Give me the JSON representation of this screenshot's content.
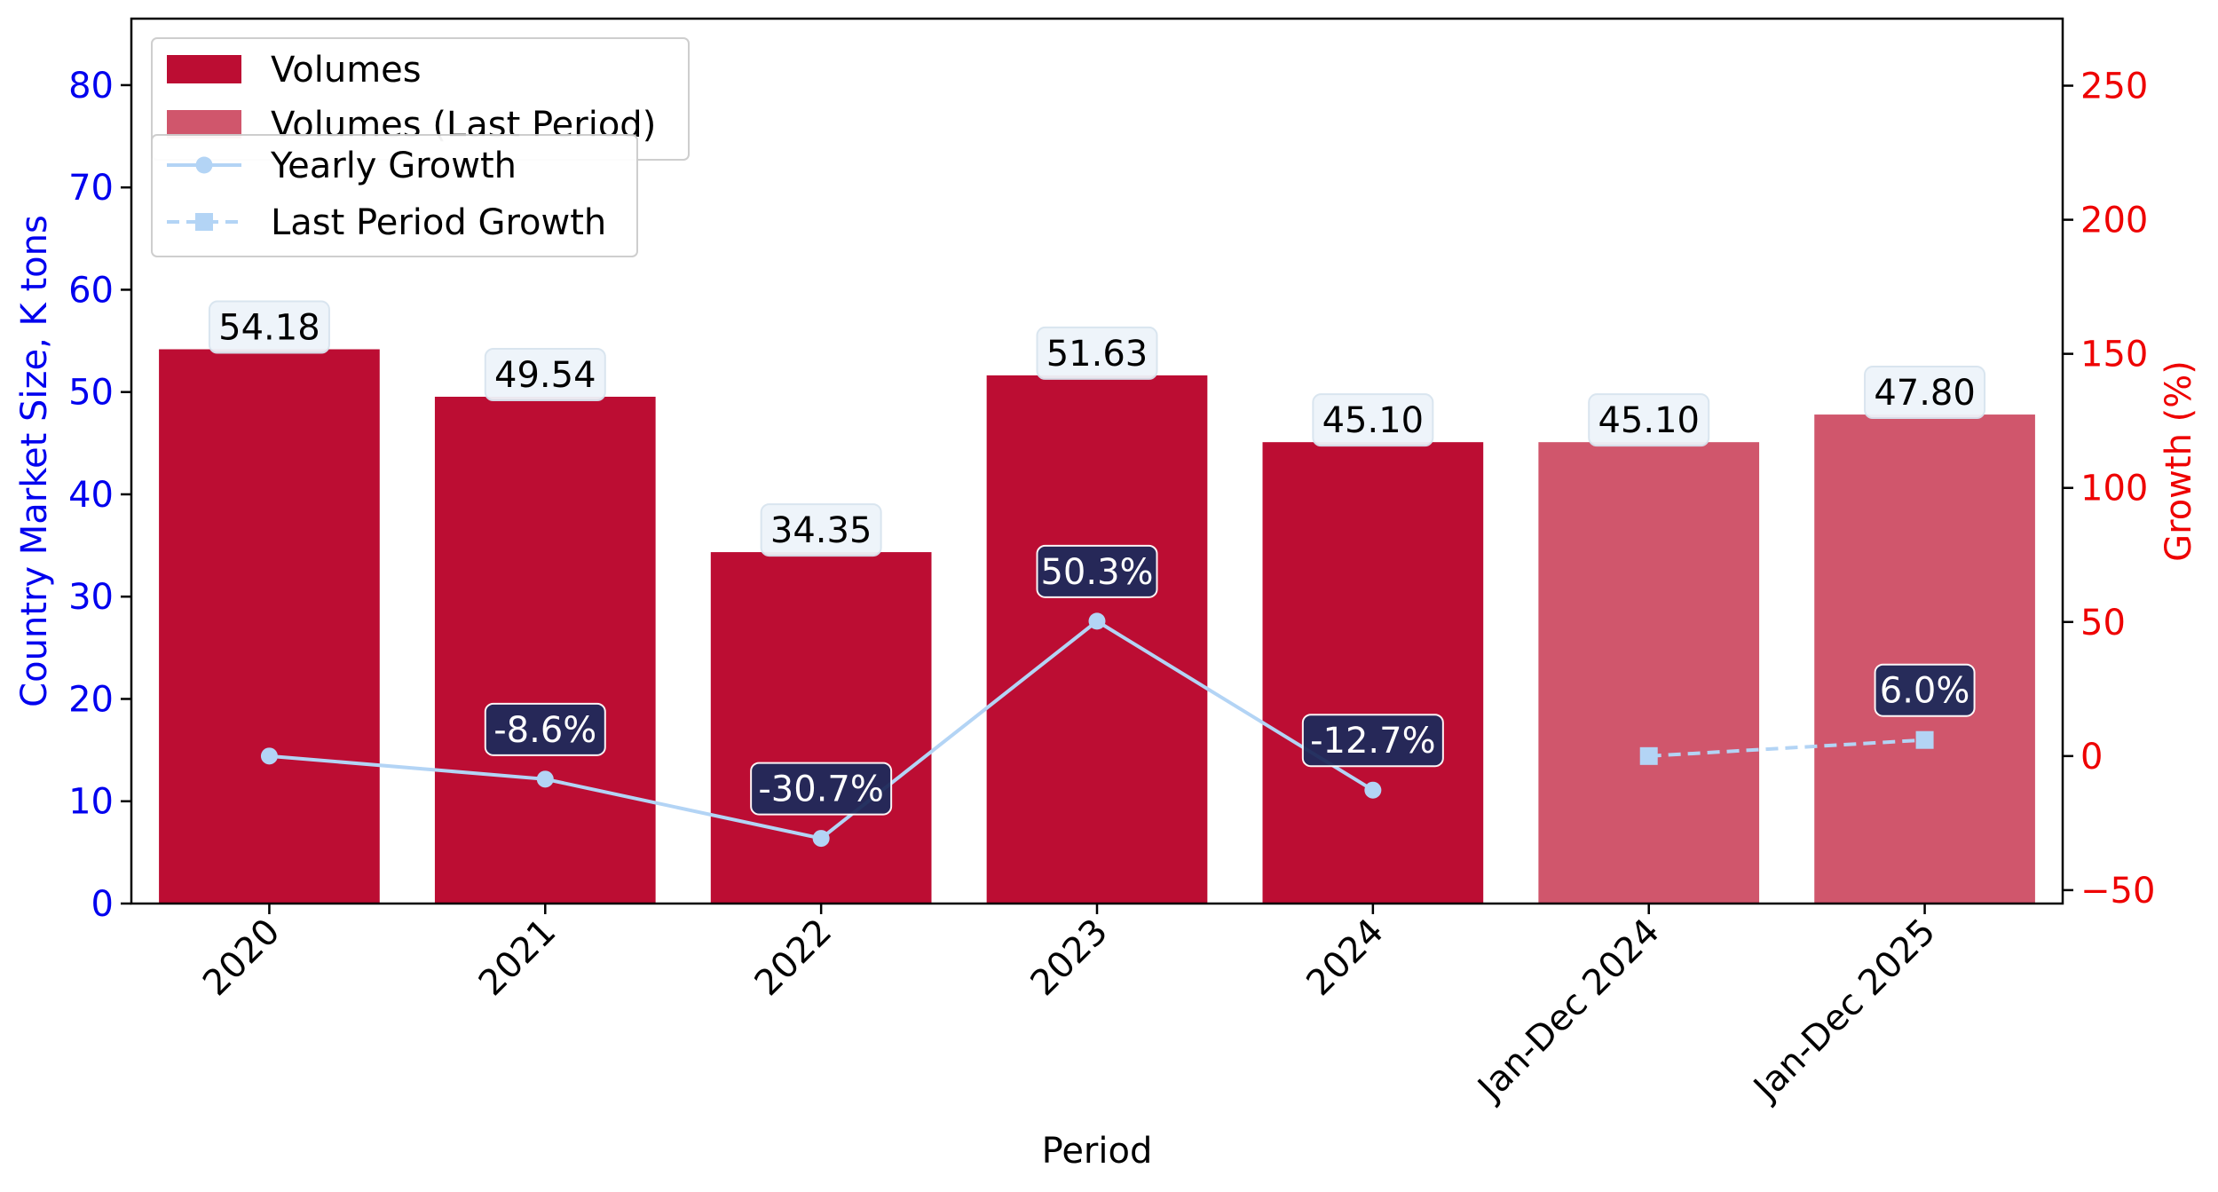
{
  "chart_data": {
    "type": "bar",
    "categories": [
      "2020",
      "2021",
      "2022",
      "2023",
      "2024",
      "Jan-Dec 2024",
      "Jan-Dec 2025"
    ],
    "xlabel": "Period",
    "ylabel_left": "Country Market Size, K tons",
    "ylabel_right": "Growth (%)",
    "ylim_left": [
      0,
      86.5
    ],
    "ylim_right": [
      -55,
      275
    ],
    "yticks_left": [
      0,
      10,
      20,
      30,
      40,
      50,
      60,
      70,
      80
    ],
    "yticks_right": [
      -50,
      0,
      50,
      100,
      150,
      200,
      250
    ],
    "bar_series": [
      {
        "name": "Volumes",
        "color": "#bc0d33",
        "values": [
          54.18,
          49.54,
          34.35,
          51.63,
          45.1,
          null,
          null
        ],
        "labels": [
          "54.18",
          "49.54",
          "34.35",
          "51.63",
          "45.10",
          null,
          null
        ]
      },
      {
        "name": "Volumes (Last Period)",
        "color": "#d0566c",
        "values": [
          null,
          null,
          null,
          null,
          null,
          45.1,
          47.8
        ],
        "labels": [
          null,
          null,
          null,
          null,
          null,
          "45.10",
          "47.80"
        ]
      }
    ],
    "line_series": [
      {
        "name": "Yearly Growth",
        "color": "#b3d4f5",
        "style": "solid",
        "marker": "circle",
        "values": [
          0,
          -8.6,
          -30.7,
          50.3,
          -12.7,
          null,
          null
        ],
        "labels": [
          null,
          "-8.6%",
          "-30.7%",
          "50.3%",
          "-12.7%",
          null,
          null
        ]
      },
      {
        "name": "Last Period Growth",
        "color": "#b3d4f5",
        "style": "dashed",
        "marker": "square",
        "values": [
          null,
          null,
          null,
          null,
          null,
          0,
          6.0
        ],
        "labels": [
          null,
          null,
          null,
          null,
          null,
          null,
          "6.0%"
        ]
      }
    ],
    "legend": [
      "Volumes",
      "Volumes (Last Period)",
      "Yearly Growth",
      "Last Period Growth"
    ],
    "legend_position": "top-left",
    "colors": {
      "left_axis": "#0000ee",
      "right_axis": "#ee0000",
      "value_label_bg": "#eef4fa",
      "growth_label_bg": "#1f2a5a"
    },
    "grid": false
  }
}
